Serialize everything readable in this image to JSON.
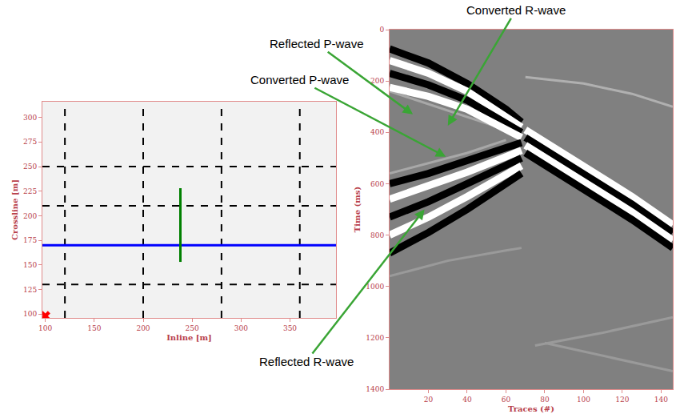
{
  "chart_data": [
    {
      "type": "line",
      "xlabel": "Inline [m]",
      "ylabel": "Crossline [m]",
      "xlim": [
        97,
        397
      ],
      "ylim": [
        96,
        316
      ],
      "xticks": [
        100,
        150,
        200,
        250,
        300,
        350
      ],
      "yticks": [
        100,
        125,
        150,
        175,
        200,
        225,
        250,
        275,
        300
      ],
      "grid": false,
      "series": [
        {
          "type": "line",
          "color": "#000000",
          "line_style": "dashed",
          "x": [
            120,
            120
          ],
          "values": [
            96,
            316
          ]
        },
        {
          "type": "line",
          "color": "#000000",
          "line_style": "dashed",
          "x": [
            200,
            200
          ],
          "values": [
            96,
            316
          ]
        },
        {
          "type": "line",
          "color": "#000000",
          "line_style": "dashed",
          "x": [
            280,
            280
          ],
          "values": [
            96,
            316
          ]
        },
        {
          "type": "line",
          "color": "#000000",
          "line_style": "dashed",
          "x": [
            360,
            360
          ],
          "values": [
            96,
            316
          ]
        },
        {
          "type": "line",
          "color": "#000000",
          "line_style": "dashed",
          "x": [
            97,
            397
          ],
          "values": [
            130,
            130
          ]
        },
        {
          "type": "line",
          "color": "#000000",
          "line_style": "dashed",
          "x": [
            97,
            397
          ],
          "values": [
            210,
            210
          ]
        },
        {
          "type": "line",
          "color": "#000000",
          "line_style": "dashed",
          "x": [
            97,
            397
          ],
          "values": [
            250,
            250
          ]
        },
        {
          "type": "line",
          "color": "#0000ff",
          "line_style": "solid",
          "x": [
            97,
            397
          ],
          "values": [
            170,
            170
          ]
        },
        {
          "type": "line",
          "color": "#008000",
          "line_style": "solid",
          "x": [
            238,
            238
          ],
          "values": [
            153,
            228
          ]
        },
        {
          "type": "scatter",
          "color": "#ff0000",
          "marker": "x",
          "x": [
            100
          ],
          "values": [
            98
          ]
        }
      ]
    },
    {
      "type": "line",
      "xlabel": "Traces (#)",
      "ylabel": "Time (ms)",
      "xlim": [
        0,
        146
      ],
      "ylim": [
        1400,
        0
      ],
      "xticks": [
        20,
        40,
        60,
        80,
        100,
        120,
        140
      ],
      "yticks": [
        0,
        200,
        400,
        600,
        800,
        1000,
        1200,
        1400
      ],
      "grid": false,
      "series": [
        {
          "type": "line",
          "color": "#b0b0b0",
          "line_style": "solid",
          "x": [
            70,
            100,
            125,
            146
          ],
          "values": [
            185,
            210,
            250,
            300
          ]
        },
        {
          "type": "line",
          "color": "#a8a8a8",
          "line_style": "solid",
          "x": [
            0,
            20,
            40,
            60
          ],
          "values": [
            240,
            290,
            340,
            390
          ]
        },
        {
          "type": "line",
          "color": "#a8a8a8",
          "line_style": "solid",
          "x": [
            0,
            20,
            40,
            60
          ],
          "values": [
            560,
            520,
            480,
            430
          ]
        },
        {
          "type": "line",
          "color": "#9a9a9a",
          "line_style": "solid",
          "x": [
            0,
            30,
            60,
            68
          ],
          "values": [
            960,
            900,
            860,
            850
          ]
        },
        {
          "type": "line",
          "color": "#9a9a9a",
          "line_style": "solid",
          "x": [
            75,
            110,
            146
          ],
          "values": [
            1230,
            1180,
            1120
          ]
        },
        {
          "type": "line",
          "color": "#9a9a9a",
          "line_style": "solid",
          "x": [
            80,
            110,
            146
          ],
          "values": [
            1220,
            1270,
            1330
          ]
        },
        {
          "type": "line",
          "color": "#000000",
          "line_style": "solid",
          "x": [
            0,
            20,
            40,
            60,
            68
          ],
          "values": [
            75,
            130,
            210,
            310,
            360
          ]
        },
        {
          "type": "line",
          "color": "#ffffff",
          "line_style": "solid",
          "x": [
            0,
            20,
            40,
            60,
            68
          ],
          "values": [
            120,
            170,
            240,
            335,
            380
          ]
        },
        {
          "type": "line",
          "color": "#000000",
          "line_style": "solid",
          "x": [
            0,
            20,
            40,
            60,
            68
          ],
          "values": [
            170,
            215,
            275,
            360,
            400
          ]
        },
        {
          "type": "line",
          "color": "#ffffff",
          "line_style": "solid",
          "x": [
            0,
            20,
            40,
            60,
            68
          ],
          "values": [
            225,
            260,
            310,
            385,
            420
          ]
        },
        {
          "type": "line",
          "color": "#000000",
          "line_style": "solid",
          "x": [
            0,
            20,
            40,
            60,
            68
          ],
          "values": [
            600,
            560,
            510,
            460,
            440
          ]
        },
        {
          "type": "line",
          "color": "#ffffff",
          "line_style": "solid",
          "x": [
            0,
            20,
            40,
            60,
            68
          ],
          "values": [
            660,
            610,
            555,
            495,
            470
          ]
        },
        {
          "type": "line",
          "color": "#000000",
          "line_style": "solid",
          "x": [
            0,
            20,
            40,
            60,
            68
          ],
          "values": [
            730,
            670,
            600,
            530,
            500
          ]
        },
        {
          "type": "line",
          "color": "#ffffff",
          "line_style": "solid",
          "x": [
            0,
            20,
            40,
            60,
            68
          ],
          "values": [
            800,
            730,
            650,
            565,
            530
          ]
        },
        {
          "type": "line",
          "color": "#000000",
          "line_style": "solid",
          "x": [
            0,
            20,
            40,
            60,
            68
          ],
          "values": [
            870,
            790,
            700,
            600,
            560
          ]
        },
        {
          "type": "line",
          "color": "#ffffff",
          "line_style": "solid",
          "x": [
            70,
            100,
            125,
            146
          ],
          "values": [
            390,
            530,
            650,
            760
          ]
        },
        {
          "type": "line",
          "color": "#000000",
          "line_style": "solid",
          "x": [
            70,
            100,
            125,
            146
          ],
          "values": [
            420,
            560,
            680,
            790
          ]
        },
        {
          "type": "line",
          "color": "#ffffff",
          "line_style": "solid",
          "x": [
            70,
            100,
            125,
            146
          ],
          "values": [
            450,
            590,
            710,
            820
          ]
        },
        {
          "type": "line",
          "color": "#000000",
          "line_style": "solid",
          "x": [
            70,
            100,
            125,
            146
          ],
          "values": [
            480,
            620,
            740,
            850
          ]
        }
      ],
      "annotations": [
        {
          "text": "Reflected P-wave",
          "x": 12,
          "y": 330
        },
        {
          "text": "Converted R-wave",
          "x": 30,
          "y": 374
        },
        {
          "text": "Converted P-wave",
          "x": 29,
          "y": 495
        },
        {
          "text": "Reflected R-wave",
          "x": 18,
          "y": 700
        }
      ]
    }
  ]
}
